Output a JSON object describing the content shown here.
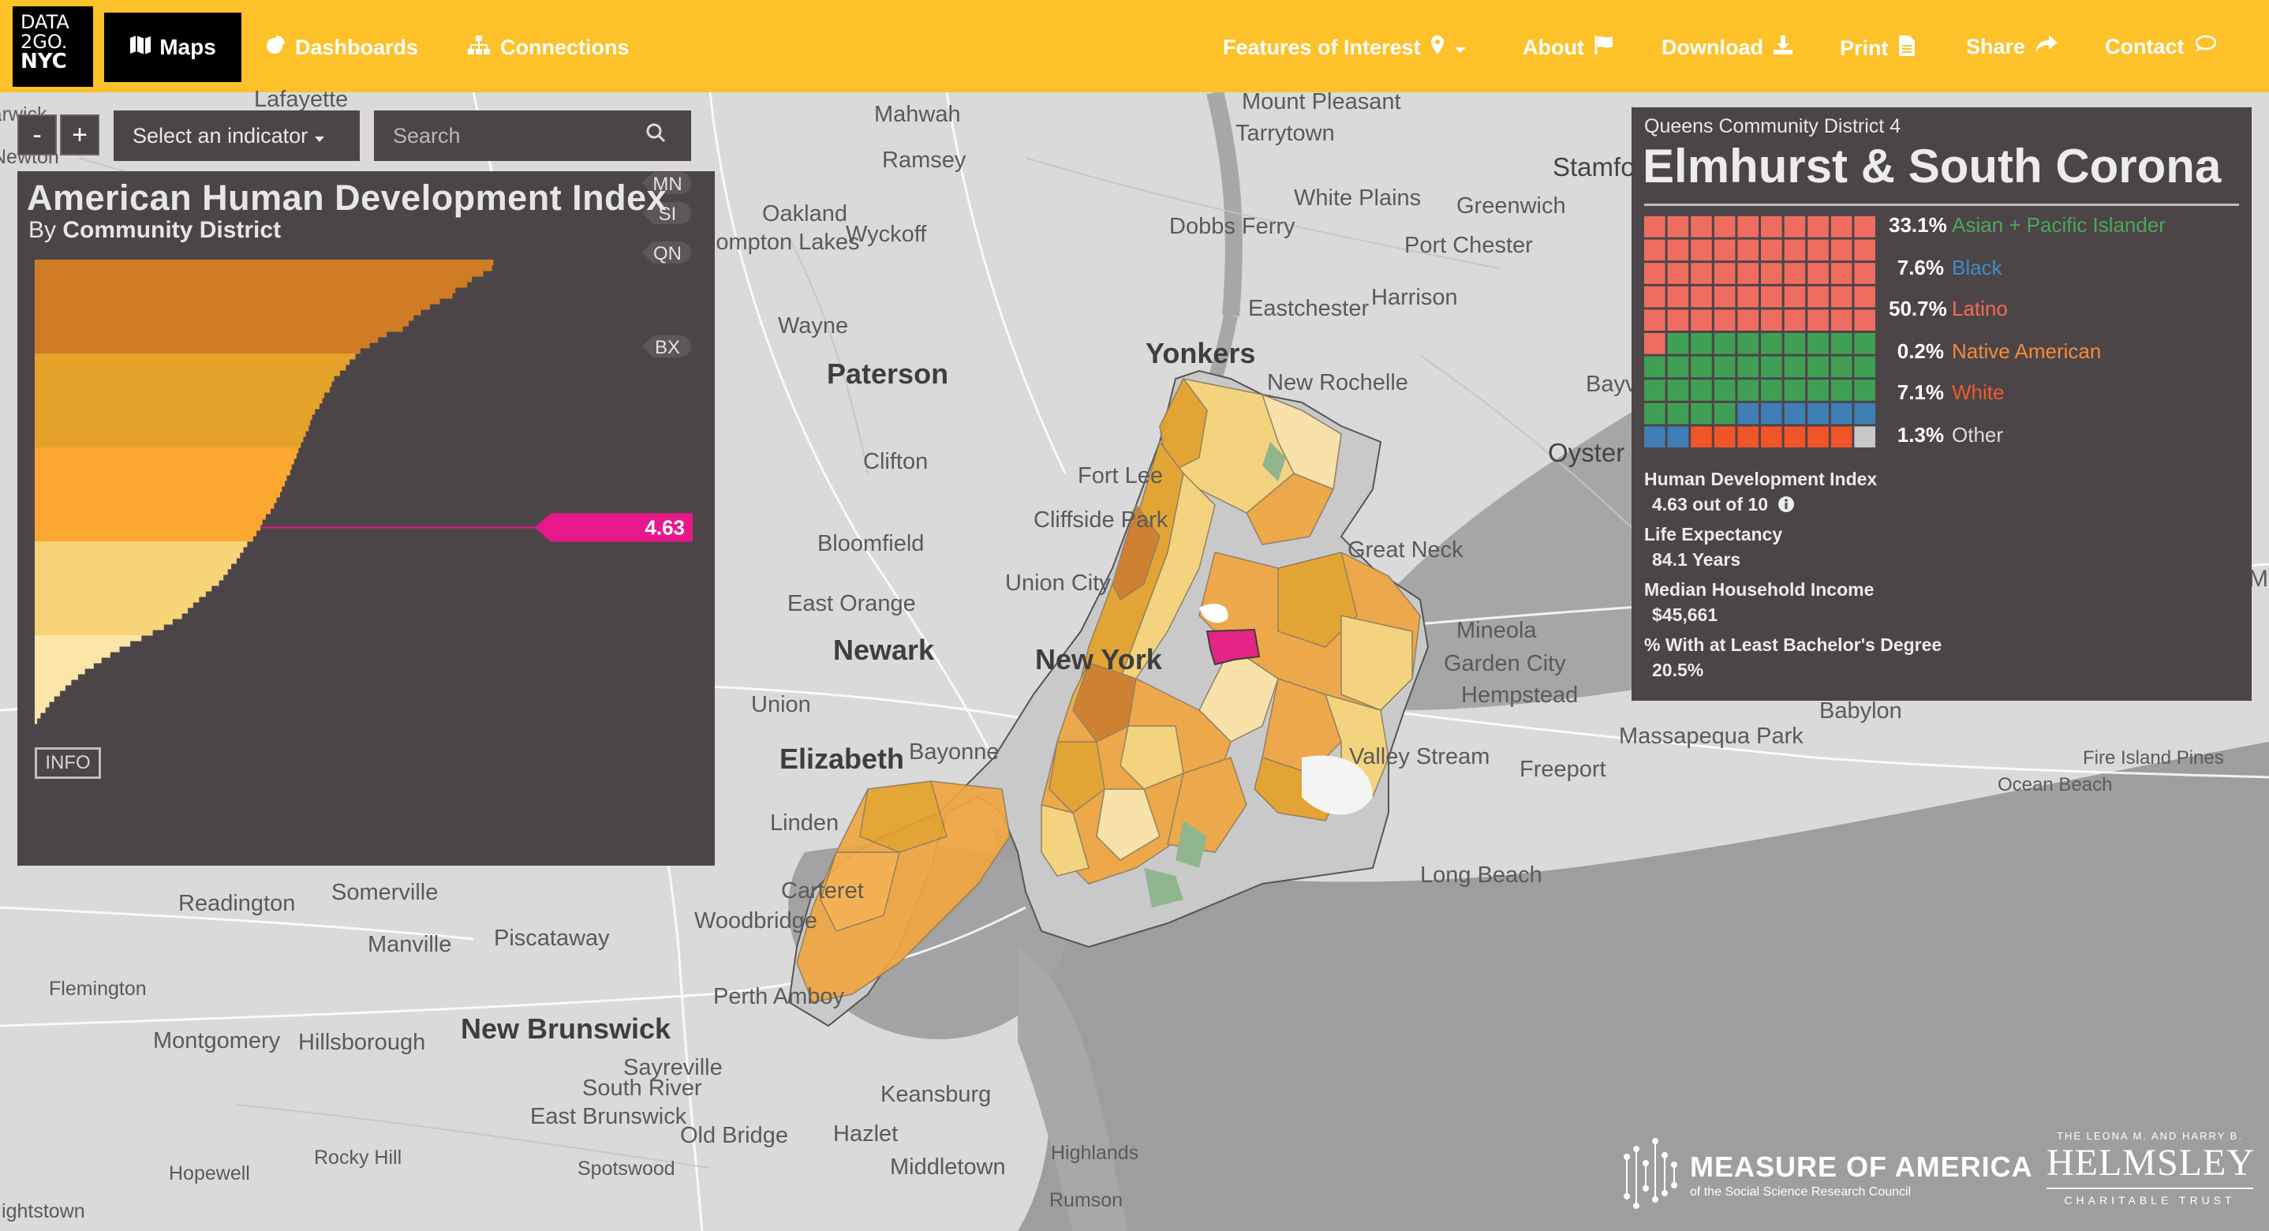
{
  "nav": {
    "logo_line1": "DATA",
    "logo_line2": "2GO.",
    "logo_line3": "NYC",
    "maps_label": "Maps",
    "dashboards_label": "Dashboards",
    "connections_label": "Connections",
    "features_label": "Features of Interest",
    "about_label": "About",
    "download_label": "Download",
    "print_label": "Print",
    "share_label": "Share",
    "contact_label": "Contact"
  },
  "controls": {
    "zoom_out": "-",
    "zoom_in": "+",
    "indicator_label": "Select an indicator",
    "search_placeholder": "Search"
  },
  "chart_panel": {
    "title": "American Human Development Index",
    "subtitle_prefix": "By",
    "subtitle_bold": "Community District",
    "info_label": "INFO"
  },
  "chart_data": {
    "type": "bar",
    "orientation": "horizontal",
    "title": "American Human Development Index",
    "subtitle": "By Community District",
    "boroughs": [
      "MN",
      "SI",
      "QN",
      "BX"
    ],
    "selected_value": "4.63",
    "category_colors": [
      "#cf7c25",
      "#e5a229",
      "#fca72f",
      "#f7d478",
      "#fbe5a8"
    ],
    "values": [
      9.41,
      9.38,
      9.2,
      8.97,
      8.87,
      8.63,
      8.57,
      8.31,
      8.11,
      7.92,
      7.77,
      7.67,
      7.55,
      7.22,
      7.04,
      6.87,
      6.68,
      6.58,
      6.46,
      6.38,
      6.26,
      6.14,
      6.09,
      6.05,
      5.94,
      5.9,
      5.84,
      5.75,
      5.69,
      5.65,
      5.62,
      5.56,
      5.51,
      5.46,
      5.41,
      5.37,
      5.32,
      5.27,
      5.24,
      5.17,
      5.13,
      5.07,
      5.03,
      4.96,
      4.91,
      4.84,
      4.74,
      4.67,
      4.63,
      4.55,
      4.48,
      4.36,
      4.28,
      4.21,
      4.14,
      4.03,
      3.96,
      3.87,
      3.78,
      3.63,
      3.51,
      3.37,
      3.25,
      3.14,
      3.02,
      2.83,
      2.65,
      2.42,
      2.19,
      1.96,
      1.74,
      1.55,
      1.37,
      1.21,
      1.03,
      0.89,
      0.75,
      0.63,
      0.52,
      0.4,
      0.3,
      0.22,
      0.12,
      0.05
    ]
  },
  "detail": {
    "district_label": "Queens Community District 4",
    "district_name": "Elmhurst & South Corona",
    "legend": [
      {
        "pct": "33.1%",
        "label": "Asian + Pacific Islander",
        "color": "#4ea65a"
      },
      {
        "pct": "7.6%",
        "label": "Black",
        "color": "#3d8fc6"
      },
      {
        "pct": "50.7%",
        "label": "Latino",
        "color": "#f26a55"
      },
      {
        "pct": "0.2%",
        "label": "Native American",
        "color": "#f28c3c"
      },
      {
        "pct": "7.1%",
        "label": "White",
        "color": "#f05a2a"
      },
      {
        "pct": "1.3%",
        "label": "Other",
        "color": "#dddddd"
      }
    ],
    "waffle_counts": [
      51,
      33,
      8,
      7,
      1
    ],
    "waffle_colors": [
      "#ee6d60",
      "#3fa055",
      "#3f7fb5",
      "#f05528",
      "#c8c8c8"
    ],
    "stats": [
      {
        "label": "Human Development Index",
        "value": "4.63 out of 10"
      },
      {
        "label": "Life Expectancy",
        "value": "84.1 Years"
      },
      {
        "label": "Median Household Income",
        "value": "$45,661"
      },
      {
        "label": "% With at Least Bachelor's Degree",
        "value": "20.5%"
      }
    ]
  },
  "map_places": [
    "Lafayette",
    "Mahwah",
    "Mount Pleasant",
    "Tarrytown",
    "Ramsey",
    "Oakland",
    "Wyckoff",
    "Pompton Lakes",
    "White Plains",
    "Stamford",
    "Greenwich",
    "Dobbs Ferry",
    "Port Chester",
    "Eastchester",
    "Harrison",
    "Wayne",
    "Yonkers",
    "New Rochelle",
    "Paterson",
    "Bayville",
    "Oyster Bay",
    "Clifton",
    "Fort Lee",
    "Cliffside Park",
    "Bloomfield",
    "Great Neck",
    "Union City",
    "East Orange",
    "Mineola",
    "Newark",
    "New York",
    "Garden City",
    "Hempstead",
    "Union",
    "Elizabeth",
    "Bayonne",
    "Valley Stream",
    "Freeport",
    "Babylon",
    "Massapequa Park",
    "Fire Island Pines",
    "Ocean Beach",
    "Linden",
    "Carteret",
    "Long Beach",
    "Readington",
    "Somerville",
    "Woodbridge",
    "Manville",
    "Piscataway",
    "Flemington",
    "Perth Amboy",
    "Montgomery",
    "Hillsborough",
    "New Brunswick",
    "Sayreville",
    "South River",
    "East Brunswick",
    "Keansburg",
    "Old Bridge",
    "Hazlet",
    "Highlands",
    "Rocky Hill",
    "Hopewell",
    "Spotswood",
    "Middletown",
    "Rumson",
    "Hightstown",
    "Newton",
    "Warwick",
    "Mattituck"
  ],
  "footer": {
    "moa_name": "MEASURE OF AMERICA",
    "moa_sub": "of the Social Science Research Council",
    "helmsley_top": "THE LEONA M. AND HARRY B.",
    "helmsley_name": "HELMSLEY",
    "helmsley_bottom": "CHARITABLE TRUST"
  }
}
